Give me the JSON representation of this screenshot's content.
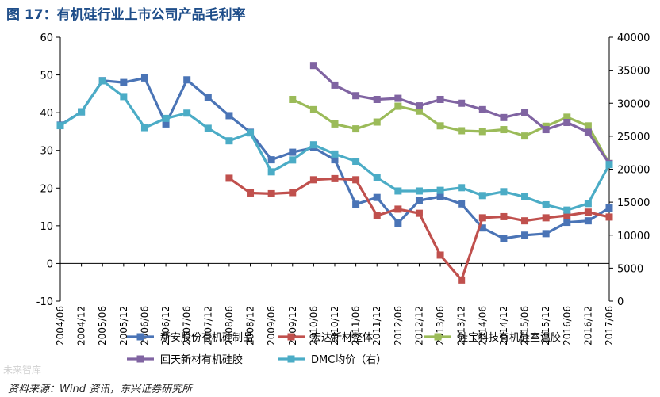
{
  "chart_data": {
    "type": "line",
    "title": "图 17：有机硅行业上市公司产品毛利率",
    "source": "资料来源：Wind 资讯，东兴证券研究所",
    "watermark": "未来智库",
    "categories": [
      "2004/06",
      "2004/12",
      "2005/06",
      "2005/12",
      "2006/06",
      "2006/12",
      "2007/06",
      "2007/12",
      "2008/06",
      "2008/12",
      "2009/06",
      "2009/12",
      "2010/06",
      "2010/12",
      "2011/06",
      "2011/12",
      "2012/06",
      "2012/12",
      "2013/06",
      "2013/12",
      "2014/06",
      "2014/12",
      "2015/06",
      "2015/12",
      "2016/06",
      "2016/12",
      "2017/06"
    ],
    "y_left": {
      "min": -10,
      "max": 60,
      "ticks": [
        -10,
        0,
        10,
        20,
        30,
        40,
        50,
        60
      ]
    },
    "y_right": {
      "min": 0,
      "max": 40000,
      "ticks": [
        0,
        5000,
        10000,
        15000,
        20000,
        25000,
        30000,
        35000,
        40000
      ]
    },
    "series": [
      {
        "name": "新安股份有机硅制品",
        "color": "#4a74b6",
        "axis": "left",
        "values": [
          36.7,
          40.2,
          48.5,
          48,
          49.2,
          37,
          48.7,
          44,
          39.2,
          34.8,
          27.5,
          29.5,
          30.7,
          27.5,
          15.7,
          17.5,
          10.7,
          16.7,
          17.7,
          15.8,
          9.4,
          6.6,
          7.5,
          7.9,
          10.9,
          11.3,
          14.7
        ]
      },
      {
        "name": "宏达新材整体",
        "color": "#c0504d",
        "axis": "left",
        "values": [
          null,
          null,
          null,
          null,
          null,
          null,
          null,
          null,
          22.6,
          18.7,
          18.5,
          18.8,
          22.2,
          22.5,
          22.2,
          12.7,
          14.4,
          13.3,
          2.2,
          -4.4,
          12.1,
          12.4,
          11.3,
          12.1,
          12.7,
          13.6,
          12.3
        ]
      },
      {
        "name": "硅宝科技有机硅室温胶",
        "color": "#9bbb59",
        "axis": "left",
        "values": [
          null,
          null,
          null,
          null,
          null,
          null,
          null,
          null,
          null,
          null,
          null,
          43.5,
          40.8,
          37,
          35.7,
          37.5,
          41.7,
          40.4,
          36.5,
          35.2,
          35,
          35.5,
          33.8,
          36.4,
          38.8,
          36.5,
          26.5
        ]
      },
      {
        "name": "回天新材有机硅胶",
        "color": "#8064a2",
        "axis": "left",
        "values": [
          null,
          null,
          null,
          null,
          null,
          null,
          null,
          null,
          null,
          null,
          null,
          null,
          52.5,
          47.3,
          44.5,
          43.5,
          43.8,
          41.8,
          43.5,
          42.5,
          40.8,
          38.7,
          40,
          35.5,
          37.4,
          34.8,
          26.5
        ]
      },
      {
        "name": "DMC均价（右）",
        "color": "#4bacc6",
        "axis": "right",
        "values": [
          26600,
          28700,
          33400,
          31000,
          26300,
          27700,
          28500,
          26200,
          24300,
          25500,
          19600,
          21400,
          23700,
          22300,
          21200,
          18700,
          16700,
          16700,
          16800,
          17200,
          16000,
          16600,
          15800,
          14600,
          13800,
          14800,
          20700
        ]
      }
    ],
    "legend_position": "bottom"
  }
}
